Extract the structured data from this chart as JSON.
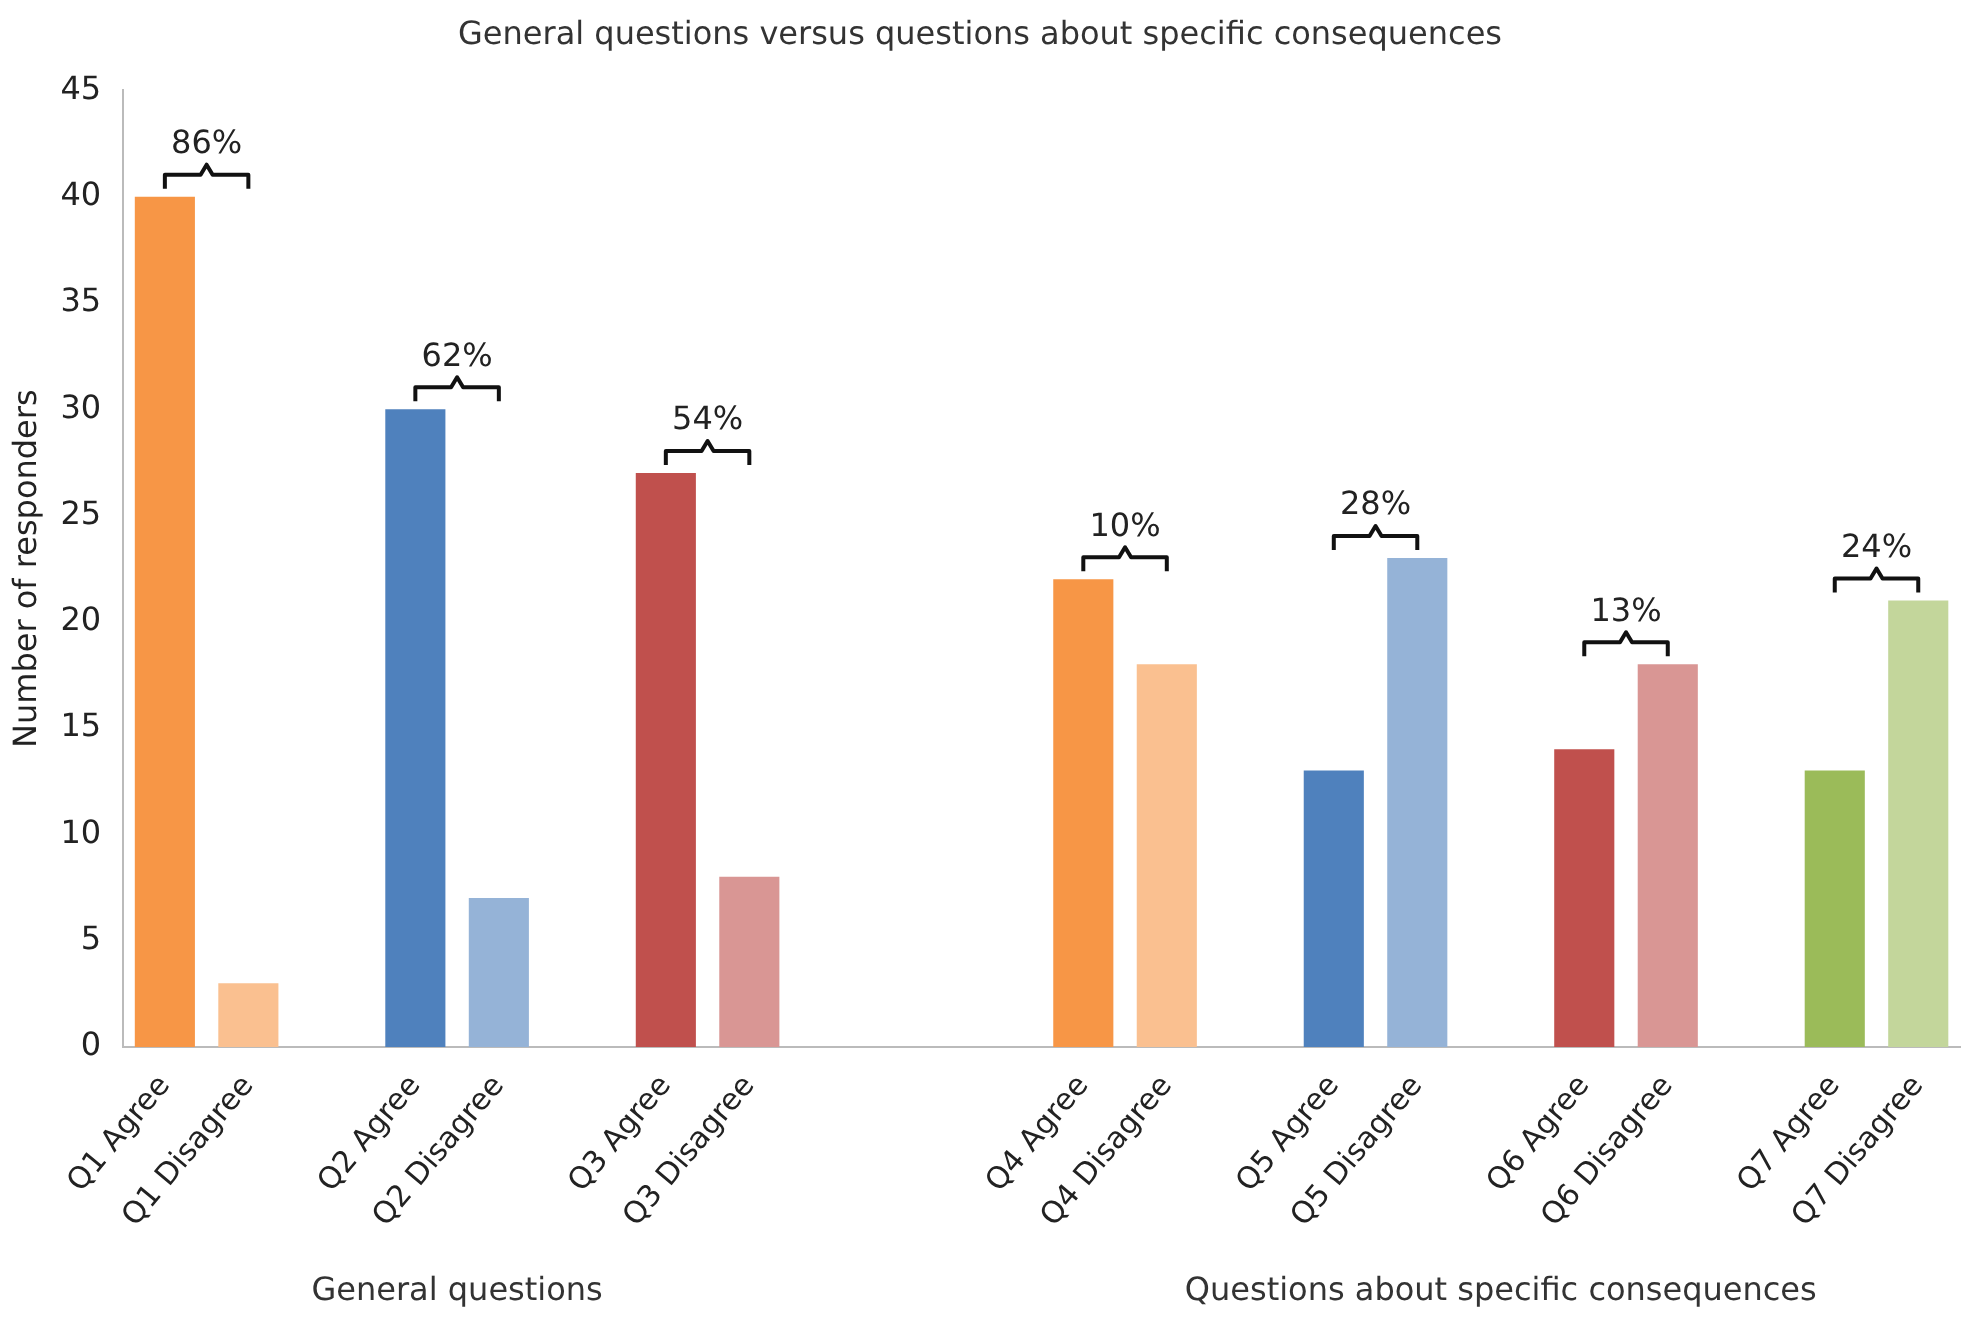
{
  "chart_data": {
    "type": "bar",
    "title": "General questions versus questions about specific consequences",
    "ylabel": "Number of responders",
    "categories": [
      "Q1 Agree",
      "Q1 Disagree",
      null,
      "Q2 Agree",
      "Q2 Disagree",
      null,
      "Q3 Agree",
      "Q3 Disagree",
      null,
      null,
      null,
      "Q4 Agree",
      "Q4 Disagree",
      null,
      "Q5 Agree",
      "Q5 Disagree",
      null,
      "Q6 Agree",
      "Q6 Disagree",
      null,
      "Q7 Agree",
      "Q7 Disagree"
    ],
    "values": [
      40,
      3,
      null,
      30,
      7,
      null,
      27,
      8,
      null,
      null,
      null,
      22,
      18,
      null,
      13,
      23,
      null,
      14,
      18,
      null,
      13,
      21
    ],
    "colors": [
      "#f79646",
      "#fac090",
      null,
      "#4f81bd",
      "#95b3d7",
      null,
      "#c0504d",
      "#d99694",
      null,
      null,
      null,
      "#f79646",
      "#fac090",
      null,
      "#4f81bd",
      "#95b3d7",
      null,
      "#c0504d",
      "#d99694",
      null,
      "#9bbb59",
      "#c3d69b"
    ],
    "ylim": [
      0,
      45
    ],
    "yticks": [
      0,
      5,
      10,
      15,
      20,
      25,
      30,
      35,
      40,
      45
    ],
    "grid": false,
    "legend": false,
    "annotations": [
      "86%",
      "62%",
      "54%",
      "10%",
      "28%",
      "13%",
      "24%",
      "General questions",
      "Questions about specific consequences"
    ]
  }
}
